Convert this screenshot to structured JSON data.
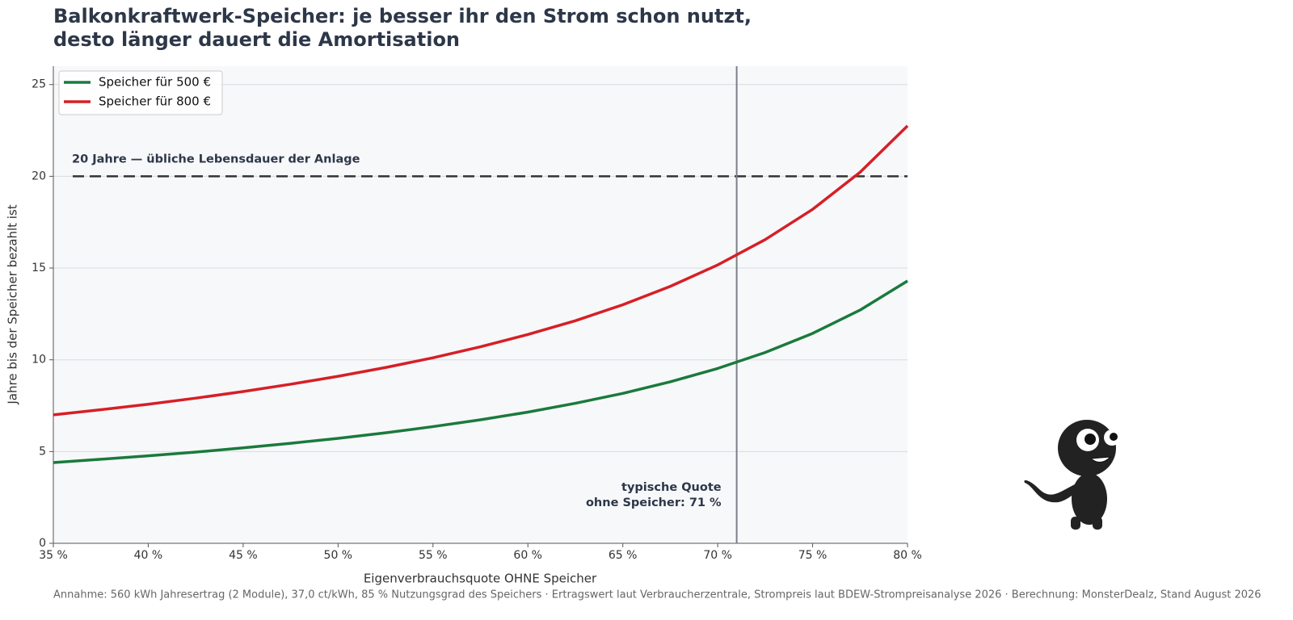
{
  "chart_data": {
    "type": "line",
    "title": [
      "Balkonkraftwerk-Speicher: je besser ihr den Strom schon nutzt,",
      "desto länger dauert die Amortisation"
    ],
    "x_label": "Eigenverbrauchsquote OHNE Speicher",
    "y_label": "Jahre bis der Speicher bezahlt ist",
    "x": [
      35,
      37.5,
      40,
      42.5,
      45,
      47.5,
      50,
      52.5,
      55,
      57.5,
      60,
      62.5,
      65,
      67.5,
      70,
      72.5,
      75,
      77.5,
      80
    ],
    "series": [
      {
        "name": "Speicher für 500 €",
        "color": "#1a7a3c",
        "values": [
          4.4,
          4.58,
          4.77,
          4.97,
          5.2,
          5.45,
          5.72,
          6.02,
          6.36,
          6.73,
          7.15,
          7.63,
          8.17,
          8.8,
          9.53,
          10.4,
          11.44,
          12.71,
          14.3
        ]
      },
      {
        "name": "Speicher für 800 €",
        "color": "#d61f26",
        "values": [
          7.0,
          7.28,
          7.58,
          7.91,
          8.27,
          8.67,
          9.1,
          9.58,
          10.11,
          10.71,
          11.38,
          12.13,
          13.0,
          14.0,
          15.17,
          16.55,
          18.2,
          20.22,
          22.75
        ]
      }
    ],
    "xlim": [
      35,
      80
    ],
    "ylim": [
      0,
      26
    ],
    "xticks": [
      {
        "value": 35,
        "label": "35 %"
      },
      {
        "value": 40,
        "label": "40 %"
      },
      {
        "value": 45,
        "label": "45 %"
      },
      {
        "value": 50,
        "label": "50 %"
      },
      {
        "value": 55,
        "label": "55 %"
      },
      {
        "value": 60,
        "label": "60 %"
      },
      {
        "value": 65,
        "label": "65 %"
      },
      {
        "value": 70,
        "label": "70 %"
      },
      {
        "value": 75,
        "label": "75 %"
      },
      {
        "value": 80,
        "label": "80 %"
      }
    ],
    "yticks": [
      0,
      5,
      10,
      15,
      20,
      25
    ],
    "grid": true,
    "legend": "upper left",
    "hline": {
      "value": 20,
      "label": "20 Jahre — übliche Lebensdauer der Anlage"
    },
    "vline": {
      "value": 71,
      "label": [
        "typische Quote",
        "ohne Speicher: 71 %"
      ]
    },
    "footnote": "Annahme: 560 kWh Jahresertrag (2 Module), 37,0 ct/kWh, 85 % Nutzungsgrad des Speichers · Ertragswert laut Verbraucherzentrale, Strompreis laut BDEW-Strompreisanalyse 2026 · Berechnung: MonsterDealz, Stand August 2026"
  }
}
